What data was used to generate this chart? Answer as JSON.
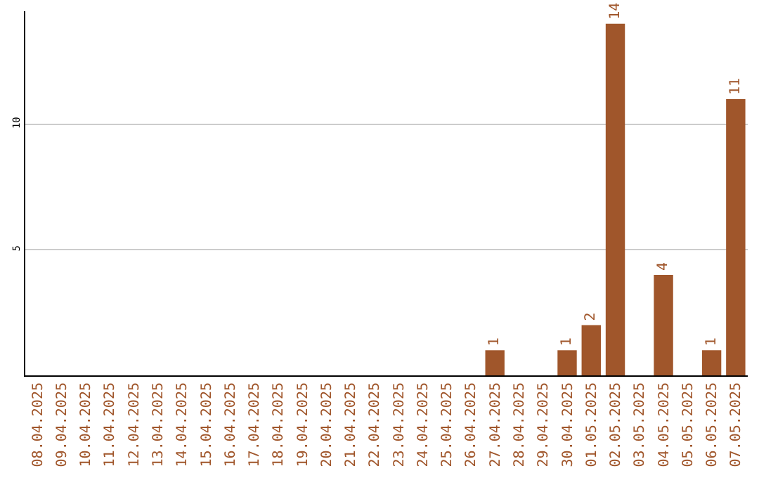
{
  "chart_data": {
    "type": "bar",
    "categories": [
      "08.04.2025",
      "09.04.2025",
      "10.04.2025",
      "11.04.2025",
      "12.04.2025",
      "13.04.2025",
      "14.04.2025",
      "15.04.2025",
      "16.04.2025",
      "17.04.2025",
      "18.04.2025",
      "19.04.2025",
      "20.04.2025",
      "21.04.2025",
      "22.04.2025",
      "23.04.2025",
      "24.04.2025",
      "25.04.2025",
      "26.04.2025",
      "27.04.2025",
      "28.04.2025",
      "29.04.2025",
      "30.04.2025",
      "01.05.2025",
      "02.05.2025",
      "03.05.2025",
      "04.05.2025",
      "05.05.2025",
      "06.05.2025",
      "07.05.2025"
    ],
    "values": [
      0,
      0,
      0,
      0,
      0,
      0,
      0,
      0,
      0,
      0,
      0,
      0,
      0,
      0,
      0,
      0,
      0,
      0,
      0,
      1,
      0,
      0,
      1,
      2,
      14,
      0,
      4,
      0,
      1,
      11
    ],
    "value_labels": [
      null,
      null,
      null,
      null,
      null,
      null,
      null,
      null,
      null,
      null,
      null,
      null,
      null,
      null,
      null,
      null,
      null,
      null,
      null,
      "1",
      null,
      null,
      "1",
      "2",
      "14",
      null,
      "4",
      null,
      "1",
      "11"
    ],
    "color": "#a0562b",
    "ylim": [
      0,
      14.5
    ],
    "yticks": [
      5,
      10
    ],
    "grid": "y",
    "legend": false
  }
}
